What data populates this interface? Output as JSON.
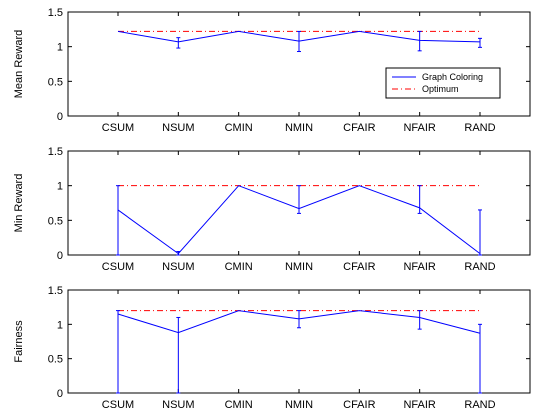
{
  "chart_data": [
    {
      "type": "line",
      "ylabel": "Mean Reward",
      "ylim": [
        0,
        1.5
      ],
      "yticks": [
        "0",
        "0.5",
        "1",
        "1.5"
      ],
      "categories": [
        "CSUM",
        "NSUM",
        "CMIN",
        "NMIN",
        "CFAIR",
        "NFAIR",
        "RAND"
      ],
      "grid": false,
      "legend": {
        "placement": "lower-right"
      },
      "series": [
        {
          "name": "Graph Coloring",
          "color": "#0000ff",
          "style": "solid",
          "values": [
            1.22,
            1.07,
            1.22,
            1.08,
            1.22,
            1.09,
            1.07
          ],
          "error_low": [
            1.22,
            0.98,
            1.22,
            0.93,
            1.22,
            0.94,
            0.99
          ],
          "error_high": [
            1.22,
            1.13,
            1.22,
            1.22,
            1.22,
            1.22,
            1.12
          ]
        },
        {
          "name": "Optimum",
          "color": "#ff0000",
          "style": "dash-dot",
          "values": [
            1.22,
            1.22,
            1.22,
            1.22,
            1.22,
            1.22,
            1.22
          ]
        }
      ]
    },
    {
      "type": "line",
      "ylabel": "Min Reward",
      "ylim": [
        0,
        1.5
      ],
      "yticks": [
        "0",
        "0.5",
        "1",
        "1.5"
      ],
      "categories": [
        "CSUM",
        "NSUM",
        "CMIN",
        "NMIN",
        "CFAIR",
        "NFAIR",
        "RAND"
      ],
      "grid": false,
      "series": [
        {
          "name": "",
          "color": "#0000ff",
          "style": "solid",
          "values": [
            0.65,
            0.02,
            1.0,
            0.67,
            1.0,
            0.68,
            0.02
          ],
          "error_low": [
            0.0,
            0.0,
            1.0,
            0.6,
            1.0,
            0.6,
            0.0
          ],
          "error_high": [
            1.0,
            0.05,
            1.0,
            1.0,
            1.0,
            1.0,
            0.65
          ]
        },
        {
          "name": "",
          "color": "#ff0000",
          "style": "dash-dot",
          "values": [
            1.0,
            1.0,
            1.0,
            1.0,
            1.0,
            1.0,
            1.0
          ]
        }
      ]
    },
    {
      "type": "line",
      "ylabel": "Fairness",
      "ylim": [
        0,
        1.5
      ],
      "yticks": [
        "0",
        "0.5",
        "1",
        "1.5"
      ],
      "categories": [
        "CSUM",
        "NSUM",
        "CMIN",
        "NMIN",
        "CFAIR",
        "NFAIR",
        "RAND"
      ],
      "grid": false,
      "series": [
        {
          "name": "",
          "color": "#0000ff",
          "style": "solid",
          "values": [
            1.15,
            0.88,
            1.2,
            1.08,
            1.2,
            1.1,
            0.87
          ],
          "error_low": [
            0.0,
            0.0,
            1.2,
            0.95,
            1.2,
            0.93,
            0.0
          ],
          "error_high": [
            1.2,
            1.1,
            1.2,
            1.2,
            1.2,
            1.2,
            1.0
          ]
        },
        {
          "name": "",
          "color": "#ff0000",
          "style": "dash-dot",
          "values": [
            1.2,
            1.2,
            1.2,
            1.2,
            1.2,
            1.2,
            1.2
          ]
        }
      ]
    }
  ]
}
